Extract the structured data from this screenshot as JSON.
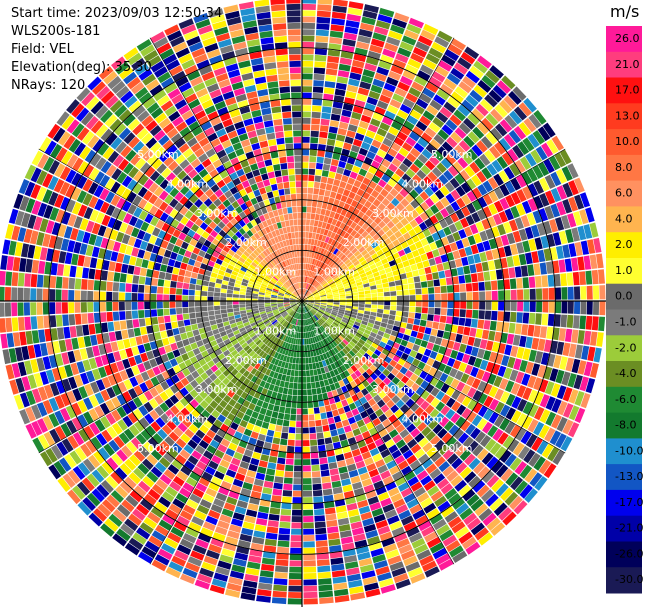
{
  "info": {
    "start_time": "Start time: 2023/09/03 12:50:34",
    "instrument": "WLS200s-181",
    "field": "Field: VEL",
    "elevation": "Elevation(deg): 35.30",
    "nrays": "NRays: 120"
  },
  "chart_data": {
    "type": "heatmap",
    "projection": "polar-ppi",
    "field": "VEL",
    "unit": "m/s",
    "nrays": 120,
    "range_max_km": 6.0,
    "range_rings_km": [
      1.0,
      2.0,
      3.0,
      4.0,
      5.0
    ],
    "ring_labels": [
      "1.00km",
      "2.00km",
      "3.00km",
      "4.00km",
      "5.00km"
    ],
    "colorbar": {
      "ticks": [
        "26.0",
        "21.0",
        "17.0",
        "13.0",
        "10.0",
        "8.0",
        "6.0",
        "4.0",
        "2.0",
        "1.0",
        "0.0",
        "-1.0",
        "-2.0",
        "-4.0",
        "-6.0",
        "-8.0",
        "-10.0",
        "-13.0",
        "-17.0",
        "-21.0",
        "-26.0",
        "-30.0"
      ],
      "colors": [
        "#ff1a99",
        "#ff3d7e",
        "#ff1010",
        "#ff3b1f",
        "#ff5a2e",
        "#ff7744",
        "#ff9160",
        "#ffb44f",
        "#ffee00",
        "#ffff30",
        "#6b6b6b",
        "#7b7b7b",
        "#9ccc3a",
        "#6b8e23",
        "#1f8a33",
        "#137a2e",
        "#1f8fcf",
        "#1256c4",
        "#0000ee",
        "#0000a8",
        "#00005a",
        "#1a1a55"
      ]
    },
    "clean_region": {
      "range_km": 2.0,
      "velocity_by_azimuth_deg": [
        [
          0,
          6
        ],
        [
          30,
          10
        ],
        [
          60,
          2
        ],
        [
          85,
          1
        ],
        [
          100,
          0
        ],
        [
          130,
          -3
        ],
        [
          160,
          -8
        ],
        [
          200,
          -6
        ],
        [
          230,
          -2
        ],
        [
          260,
          -1
        ],
        [
          300,
          2
        ],
        [
          330,
          6
        ],
        [
          360,
          6
        ]
      ]
    }
  }
}
